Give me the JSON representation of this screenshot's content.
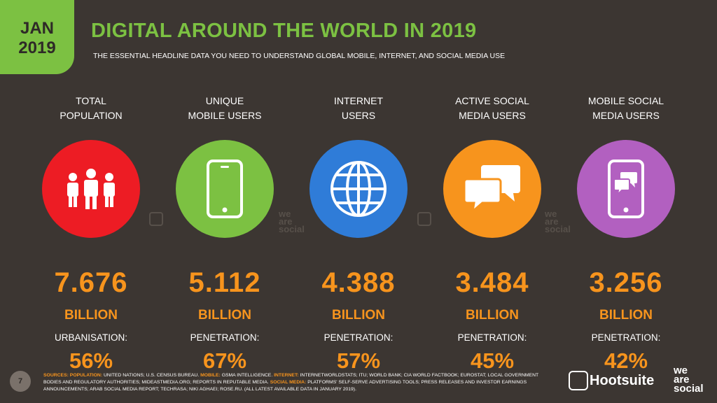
{
  "header": {
    "badge_month": "JAN",
    "badge_year": "2019",
    "title": "DIGITAL AROUND THE WORLD IN 2019",
    "subtitle": "THE ESSENTIAL HEADLINE DATA YOU NEED TO UNDERSTAND GLOBAL MOBILE, INTERNET, AND SOCIAL MEDIA USE"
  },
  "stats": [
    {
      "label_line1": "TOTAL",
      "label_line2": "POPULATION",
      "icon": "people-icon",
      "color": "#ed1c24",
      "value": "7.676",
      "unit": "BILLION",
      "sublabel": "URBANISATION:",
      "percent": "56%"
    },
    {
      "label_line1": "UNIQUE",
      "label_line2": "MOBILE USERS",
      "icon": "mobile-phone-icon",
      "color": "#7cc142",
      "value": "5.112",
      "unit": "BILLION",
      "sublabel": "PENETRATION:",
      "percent": "67%"
    },
    {
      "label_line1": "INTERNET",
      "label_line2": "USERS",
      "icon": "globe-icon",
      "color": "#2f7cd8",
      "value": "4.388",
      "unit": "BILLION",
      "sublabel": "PENETRATION:",
      "percent": "57%"
    },
    {
      "label_line1": "ACTIVE SOCIAL",
      "label_line2": "MEDIA USERS",
      "icon": "chat-bubbles-icon",
      "color": "#f7941d",
      "value": "3.484",
      "unit": "BILLION",
      "sublabel": "PENETRATION:",
      "percent": "45%"
    },
    {
      "label_line1": "MOBILE SOCIAL",
      "label_line2": "MEDIA USERS",
      "icon": "mobile-chat-icon",
      "color": "#b260c0",
      "value": "3.256",
      "unit": "BILLION",
      "sublabel": "PENETRATION:",
      "percent": "42%"
    }
  ],
  "watermark": {
    "line1": "we",
    "line2": "are",
    "line3": "social"
  },
  "footer": {
    "page_number": "7",
    "sources_label": "SOURCES:",
    "population_label": "POPULATION:",
    "population_text": "UNITED NATIONS; U.S. CENSUS BUREAU.",
    "mobile_label": "MOBILE:",
    "mobile_text": "GSMA INTELLIGENCE.",
    "internet_label": "INTERNET:",
    "internet_text": "INTERNETWORLDSTATS; ITU; WORLD BANK; CIA WORLD FACTBOOK; EUROSTAT; LOCAL GOVERNMENT BODIES AND REGULATORY AUTHORITIES; MIDEASTMEDIA.ORG; REPORTS IN REPUTABLE MEDIA.",
    "social_label": "SOCIAL MEDIA:",
    "social_text": "PLATFORMS' SELF-SERVE ADVERTISING TOOLS; PRESS RELEASES AND INVESTOR EARNINGS ANNOUNCEMENTS; ARAB SOCIAL MEDIA REPORT; TECHRASA; NIKI AGHAEI; ROSE.RU. (ALL LATEST AVAILABLE DATA IN JANUARY 2019).",
    "hootsuite": "Hootsuite",
    "ws_line1": "we",
    "ws_line2": "are",
    "ws_line3": "social"
  }
}
